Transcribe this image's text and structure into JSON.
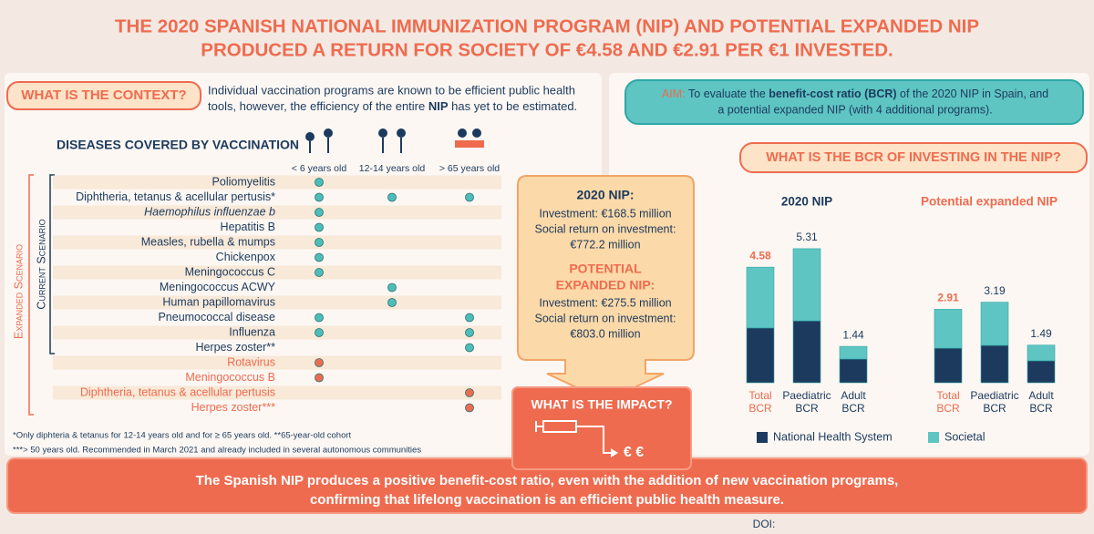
{
  "title": [
    "THE 2020 SPANISH NATIONAL IMMUNIZATION PROGRAM (NIP) AND POTENTIAL EXPANDED NIP",
    "PRODUCED A RETURN FOR SOCIETY OF €4.58 AND €2.91 PER €1 INVESTED."
  ],
  "context": {
    "heading": "WHAT IS THE CONTEXT?",
    "line1": "Individual vaccination programs are known to be efficient public health",
    "line2": [
      "tools, however, the efficiency of the entire ",
      "NIP",
      " has yet to be estimated."
    ]
  },
  "diseases": {
    "heading": "DISEASES COVERED BY VACCINATION",
    "age_groups": [
      "< 6 years old",
      "12-14 years old",
      "> 65 years old"
    ],
    "current_scenario_label": "Current Scenario",
    "expanded_scenario_label": "Expanded Scenario",
    "rows": [
      {
        "name": "Poliomyelitis",
        "italic": false,
        "color": "#1c3a5e",
        "dot_color": "#4dbdba",
        "ages": [
          true,
          false,
          false
        ]
      },
      {
        "name": "Diphtheria, tetanus & acellular pertusis*",
        "italic": false,
        "color": "#1c3a5e",
        "dot_color": "#4dbdba",
        "ages": [
          true,
          true,
          true
        ]
      },
      {
        "name": "Haemophilus influenzae b",
        "italic": true,
        "color": "#1c3a5e",
        "dot_color": "#4dbdba",
        "ages": [
          true,
          false,
          false
        ]
      },
      {
        "name": "Hepatitis B",
        "italic": false,
        "color": "#1c3a5e",
        "dot_color": "#4dbdba",
        "ages": [
          true,
          false,
          false
        ]
      },
      {
        "name": "Measles, rubella & mumps",
        "italic": false,
        "color": "#1c3a5e",
        "dot_color": "#4dbdba",
        "ages": [
          true,
          false,
          false
        ]
      },
      {
        "name": "Chickenpox",
        "italic": false,
        "color": "#1c3a5e",
        "dot_color": "#4dbdba",
        "ages": [
          true,
          false,
          false
        ]
      },
      {
        "name": "Meningococcus C",
        "italic": false,
        "color": "#1c3a5e",
        "dot_color": "#4dbdba",
        "ages": [
          true,
          false,
          false
        ]
      },
      {
        "name": "Meningococcus ACWY",
        "italic": false,
        "color": "#1c3a5e",
        "dot_color": "#4dbdba",
        "ages": [
          false,
          true,
          false
        ]
      },
      {
        "name": "Human papillomavirus",
        "italic": false,
        "color": "#1c3a5e",
        "dot_color": "#4dbdba",
        "ages": [
          false,
          true,
          false
        ]
      },
      {
        "name": "Pneumococcal disease",
        "italic": false,
        "color": "#1c3a5e",
        "dot_color": "#4dbdba",
        "ages": [
          true,
          false,
          true
        ]
      },
      {
        "name": "Influenza",
        "italic": false,
        "color": "#1c3a5e",
        "dot_color": "#4dbdba",
        "ages": [
          true,
          false,
          true
        ]
      },
      {
        "name": "Herpes zoster**",
        "italic": false,
        "color": "#1c3a5e",
        "dot_color": "#4dbdba",
        "ages": [
          false,
          false,
          true
        ]
      },
      {
        "name": "Rotavirus",
        "italic": false,
        "color": "#ef6b4f",
        "dot_color": "#ef6b4f",
        "ages": [
          true,
          false,
          false
        ]
      },
      {
        "name": "Meningococcus B",
        "italic": false,
        "color": "#ef6b4f",
        "dot_color": "#ef6b4f",
        "ages": [
          true,
          false,
          false
        ]
      },
      {
        "name": "Diphtheria, tetanus & acellular pertusis",
        "italic": false,
        "color": "#ef6b4f",
        "dot_color": "#ef6b4f",
        "ages": [
          false,
          false,
          true
        ]
      },
      {
        "name": "Herpes zoster***",
        "italic": false,
        "color": "#ef6b4f",
        "dot_color": "#ef6b4f",
        "ages": [
          false,
          false,
          true
        ]
      }
    ],
    "footnotes": [
      "*Only diphteria & tetanus for 12-14 years old and for ≥ 65 years old. **65-year-old cohort",
      "***> 50 years old. Recommended in March 2021 and already included in several autonomous communities"
    ]
  },
  "summary": {
    "nip_2020_heading": "2020 NIP:",
    "nip_2020_lines": [
      "Investment: €168.5 million",
      "Social return on investment:",
      "€772.2 million"
    ],
    "expanded_heading": [
      "POTENTIAL",
      "EXPANDED NIP:"
    ],
    "expanded_lines": [
      "Investment: €275.5 million",
      "Social return on investment:",
      "€803.0 million"
    ]
  },
  "impact": {
    "heading": "WHAT IS THE IMPACT?",
    "symbol": "€ €"
  },
  "conclusion": [
    "The Spanish NIP produces a positive benefit-cost ratio, even with the addition of new vaccination programs,",
    "confirming that lifelong vaccination is an efficient public health measure."
  ],
  "doi": "DOI:",
  "aim": {
    "label": "AIM:",
    "line1": [
      "To evaluate the ",
      "benefit-cost ratio (BCR)",
      " of the 2020 NIP in Spain, and"
    ],
    "line2": "a potential expanded NIP (with 4 additional programs)."
  },
  "bcr_heading": "WHAT IS THE BCR OF INVESTING IN THE NIP?",
  "chart_data": {
    "type": "bar",
    "stacked": true,
    "groups": [
      {
        "title": "2020 NIP",
        "title_color": "#1c3a5e",
        "categories": [
          "Total BCR",
          "Paediatric BCR",
          "Adult BCR"
        ],
        "category_colors": [
          "#ef6b4f",
          "#1c3a5e",
          "#1c3a5e"
        ],
        "totals": [
          4.58,
          5.31,
          1.44
        ]
      },
      {
        "title": "Potential expanded NIP",
        "title_color": "#ef6b4f",
        "categories": [
          "Total BCR",
          "Paediatric BCR",
          "Adult BCR"
        ],
        "category_colors": [
          "#ef6b4f",
          "#1c3a5e",
          "#1c3a5e"
        ],
        "totals": [
          2.91,
          3.19,
          1.49
        ]
      }
    ],
    "series": [
      {
        "name": "National Health System",
        "color": "#1c3a5e",
        "values": [
          2.17,
          2.45,
          0.94,
          1.37,
          1.48,
          0.87
        ]
      },
      {
        "name": "Societal",
        "color": "#5ec5c2",
        "values": [
          2.41,
          2.86,
          0.5,
          1.54,
          1.71,
          0.62
        ]
      }
    ]
  }
}
